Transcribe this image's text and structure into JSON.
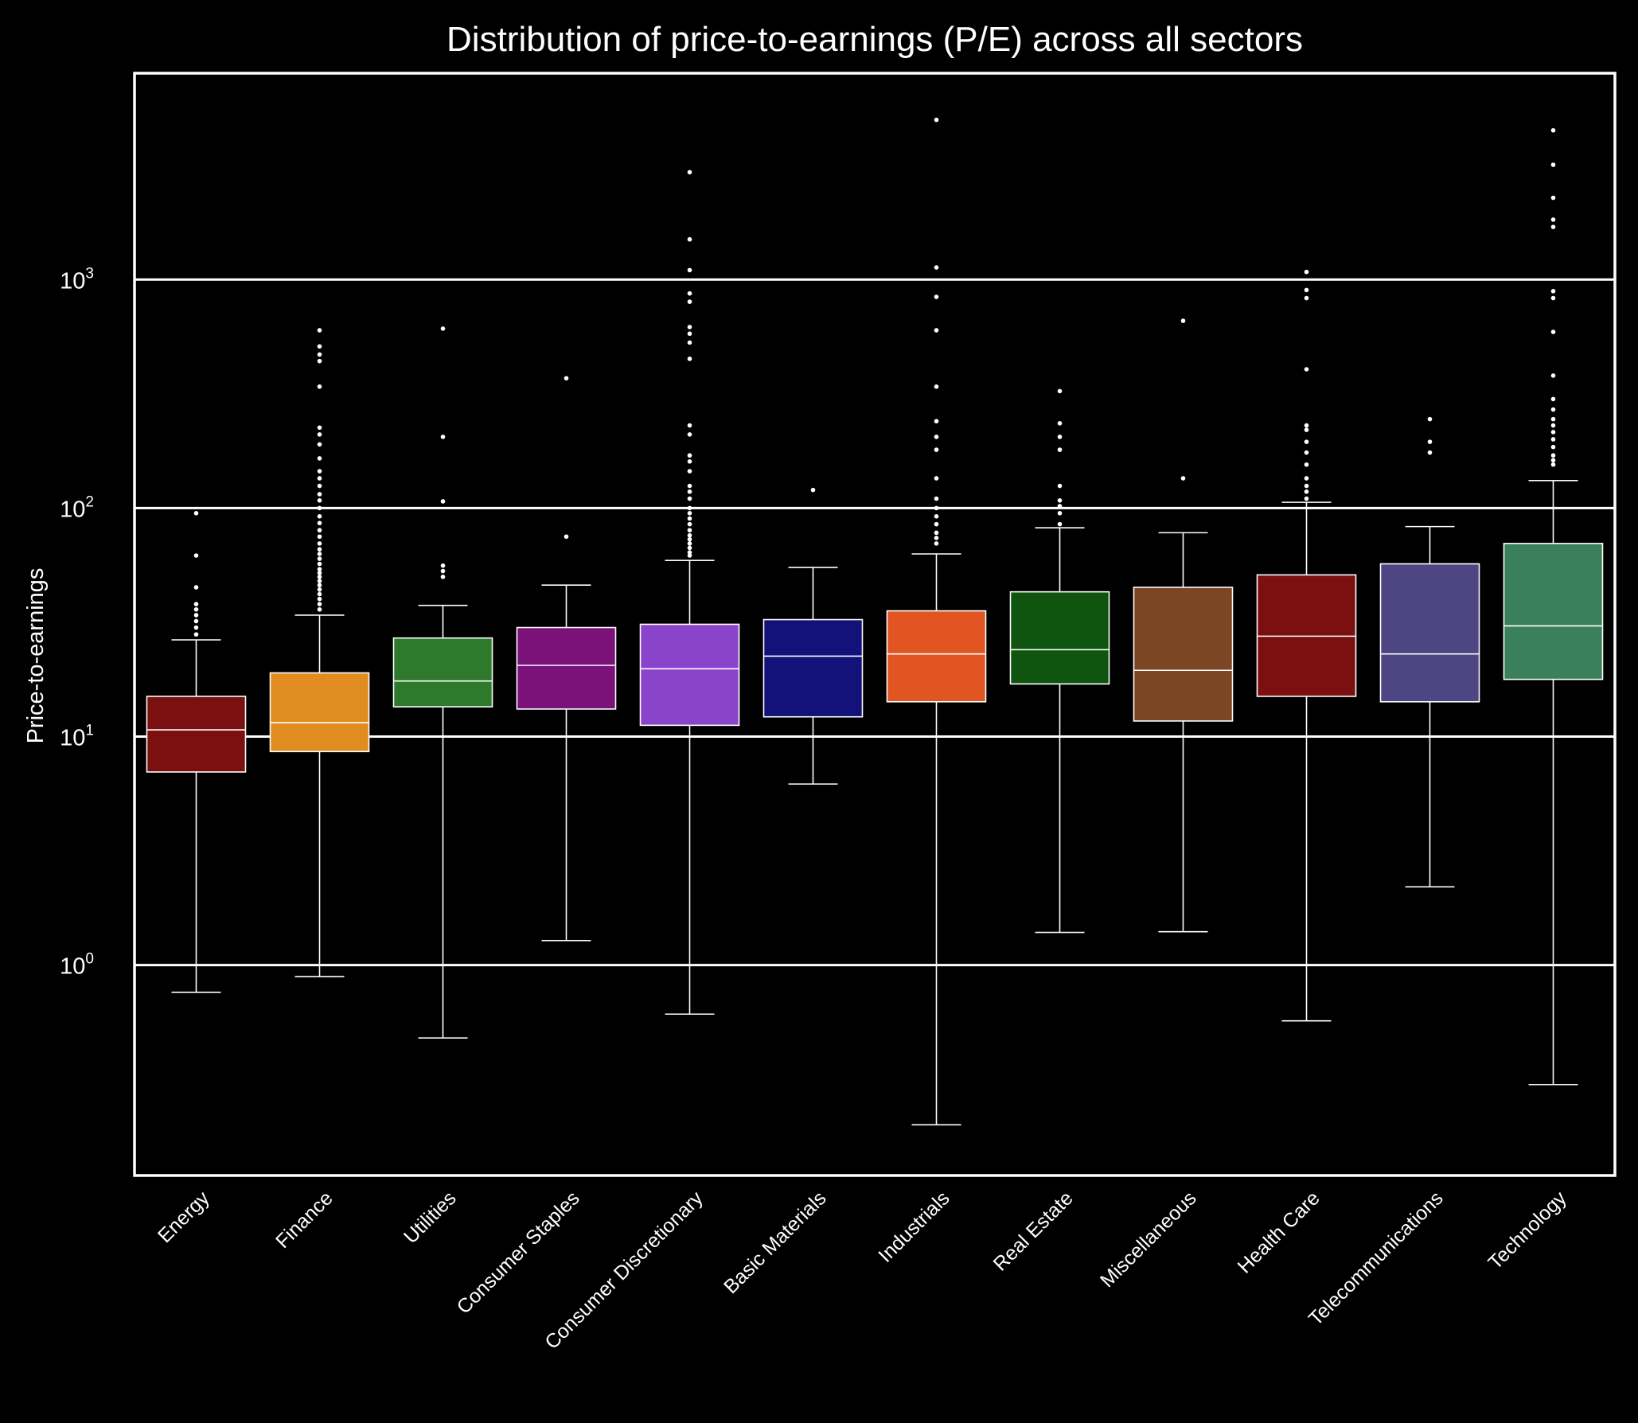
{
  "chart_data": {
    "type": "box",
    "title": "Distribution of price-to-earnings (P/E) across all sectors",
    "xlabel": "",
    "ylabel": "Price-to-earnings",
    "yscale": "log",
    "ylim": [
      0.12,
      8000
    ],
    "grid": "horizontal",
    "yticks": [
      {
        "value": 1,
        "base": "10",
        "exp": "0"
      },
      {
        "value": 10,
        "base": "10",
        "exp": "1"
      },
      {
        "value": 100,
        "base": "10",
        "exp": "2"
      },
      {
        "value": 1000,
        "base": "10",
        "exp": "3"
      }
    ],
    "series": [
      {
        "category": "Energy",
        "color": "#7a1010",
        "whisker_low": 0.76,
        "q1": 7.0,
        "median": 10.7,
        "q3": 15.0,
        "whisker_high": 26.5,
        "outliers": [
          28,
          30,
          32,
          34,
          36,
          38,
          45,
          62,
          95
        ]
      },
      {
        "category": "Finance",
        "color": "#e08c20",
        "whisker_low": 0.89,
        "q1": 8.6,
        "median": 11.5,
        "q3": 19.0,
        "whisker_high": 34.0,
        "outliers": [
          36,
          38,
          40,
          42,
          44,
          46,
          48,
          50,
          52,
          54,
          57,
          60,
          63,
          66,
          70,
          75,
          80,
          86,
          92,
          100,
          108,
          115,
          125,
          135,
          145,
          165,
          190,
          210,
          225,
          340,
          440,
          470,
          510,
          600
        ]
      },
      {
        "category": "Utilities",
        "color": "#2d7a2d",
        "whisker_low": 0.48,
        "q1": 13.5,
        "median": 17.5,
        "q3": 27.0,
        "whisker_high": 37.5,
        "outliers": [
          50,
          53,
          56,
          107,
          205,
          610
        ]
      },
      {
        "category": "Consumer Staples",
        "color": "#7a127a",
        "whisker_low": 1.28,
        "q1": 13.2,
        "median": 20.5,
        "q3": 30.0,
        "whisker_high": 46.0,
        "outliers": [
          75,
          370
        ]
      },
      {
        "category": "Consumer Discretionary",
        "color": "#8a44cc",
        "whisker_low": 0.61,
        "q1": 11.2,
        "median": 19.8,
        "q3": 31.0,
        "whisker_high": 59.0,
        "outliers": [
          62,
          64,
          67,
          70,
          73,
          76,
          80,
          85,
          90,
          95,
          100,
          110,
          118,
          125,
          145,
          160,
          170,
          210,
          230,
          450,
          530,
          580,
          620,
          800,
          870,
          1100,
          1500,
          2950
        ]
      },
      {
        "category": "Basic Materials",
        "color": "#12127a",
        "whisker_low": 6.2,
        "q1": 12.2,
        "median": 22.5,
        "q3": 32.5,
        "whisker_high": 55.0,
        "outliers": [
          120
        ]
      },
      {
        "category": "Industrials",
        "color": "#e05522",
        "whisker_low": 0.2,
        "q1": 14.2,
        "median": 23.0,
        "q3": 35.5,
        "whisker_high": 63.0,
        "outliers": [
          70,
          74,
          78,
          85,
          92,
          100,
          110,
          135,
          180,
          205,
          240,
          340,
          600,
          840,
          1130,
          5000
        ]
      },
      {
        "category": "Real Estate",
        "color": "#0f550f",
        "whisker_low": 1.39,
        "q1": 17.0,
        "median": 24.0,
        "q3": 43.0,
        "whisker_high": 82.0,
        "outliers": [
          85,
          95,
          102,
          108,
          125,
          180,
          205,
          235,
          325
        ]
      },
      {
        "category": "Miscellaneous",
        "color": "#7c4624",
        "whisker_low": 1.4,
        "q1": 11.7,
        "median": 19.5,
        "q3": 45.0,
        "whisker_high": 78.0,
        "outliers": [
          135,
          660
        ]
      },
      {
        "category": "Health Care",
        "color": "#7a1010",
        "whisker_low": 0.57,
        "q1": 15.0,
        "median": 27.5,
        "q3": 51.0,
        "whisker_high": 106.0,
        "outliers": [
          110,
          118,
          125,
          135,
          155,
          175,
          195,
          220,
          230,
          405,
          830,
          900,
          1080
        ]
      },
      {
        "category": "Telecommunications",
        "color": "#4e4682",
        "whisker_low": 2.2,
        "q1": 14.2,
        "median": 23.0,
        "q3": 57.0,
        "whisker_high": 83.0,
        "outliers": [
          175,
          195,
          245
        ]
      },
      {
        "category": "Technology",
        "color": "#3a805a",
        "whisker_low": 0.3,
        "q1": 17.8,
        "median": 30.5,
        "q3": 70.0,
        "whisker_high": 132.0,
        "outliers": [
          155,
          162,
          170,
          185,
          200,
          215,
          230,
          245,
          270,
          300,
          380,
          590,
          830,
          890,
          1700,
          1830,
          2280,
          3180,
          4500
        ]
      }
    ]
  }
}
